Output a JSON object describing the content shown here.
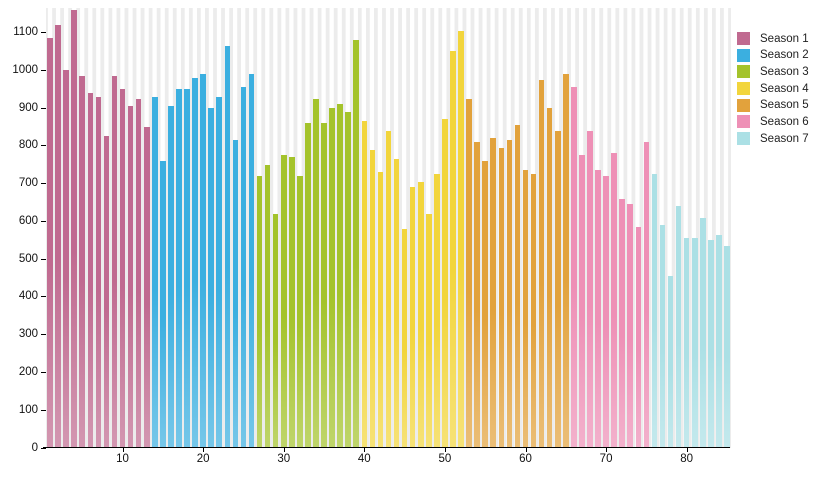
{
  "chart_data": {
    "type": "bar",
    "title": "",
    "xlabel": "",
    "ylabel": "",
    "ylim": [
      0,
      1165
    ],
    "y_ticks": [
      0,
      100,
      200,
      300,
      400,
      500,
      600,
      700,
      800,
      900,
      1000,
      1100
    ],
    "x_ticks": [
      10,
      20,
      30,
      40,
      50,
      60,
      70,
      80
    ],
    "grid": "vertical-stripes",
    "legend_position": "right",
    "x_unit": "episode-number",
    "series": [
      {
        "name": "Season 1",
        "color": "#c06a90",
        "values": [
          1085,
          1120,
          1000,
          1160,
          985,
          940,
          930,
          825,
          985,
          950,
          905,
          925,
          850
        ]
      },
      {
        "name": "Season 2",
        "color": "#3bafe0",
        "values": [
          930,
          760,
          905,
          950,
          950,
          980,
          990,
          900,
          930,
          1065,
          815,
          955,
          990
        ]
      },
      {
        "name": "Season 3",
        "color": "#a4c32b",
        "values": [
          720,
          750,
          620,
          775,
          770,
          720,
          860,
          925,
          860,
          900,
          910,
          890,
          1080
        ]
      },
      {
        "name": "Season 4",
        "color": "#f2d53c",
        "values": [
          865,
          790,
          730,
          840,
          765,
          580,
          690,
          705,
          620,
          725,
          870,
          1050,
          1105
        ]
      },
      {
        "name": "Season 5",
        "color": "#e2a23c",
        "values": [
          925,
          810,
          760,
          820,
          795,
          815,
          855,
          735,
          725,
          975,
          900,
          840,
          990
        ]
      },
      {
        "name": "Season 6",
        "color": "#ee90b6",
        "values": [
          955,
          775,
          840,
          735,
          720,
          780,
          660,
          645,
          585,
          810
        ]
      },
      {
        "name": "Season 7",
        "color": "#abe0e5",
        "values": [
          725,
          590,
          455,
          640,
          555,
          555,
          610,
          550,
          565,
          535
        ]
      }
    ]
  },
  "colors": {
    "background": "#ffffff",
    "stripe": "#ececec",
    "axis": "#000000",
    "tick_text": "#111111",
    "legend_text": "#222222"
  }
}
